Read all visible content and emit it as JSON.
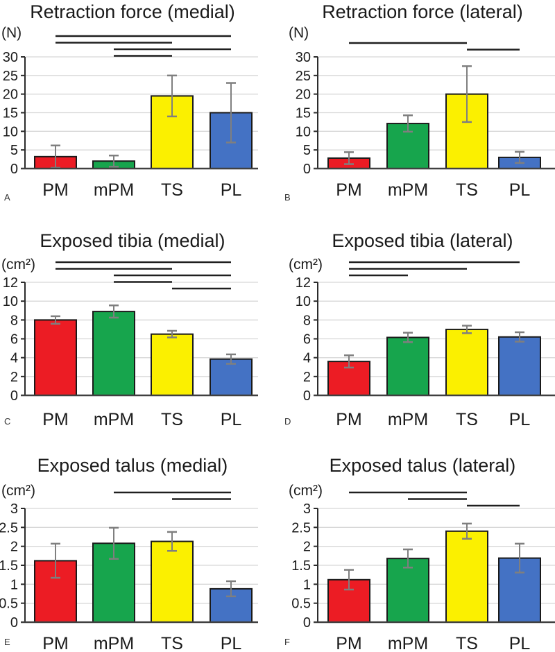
{
  "figure": {
    "bar_colors": [
      "#EC1C24",
      "#17A54D",
      "#FBF000",
      "#4472C4"
    ],
    "error_bar_color": "#7F7F7F",
    "grid_color": "#D8D8D8",
    "axis_color": "#2b2b2b",
    "baseline_color": "#404040",
    "sig_line_color": "#1f1f1f"
  },
  "chart_data": [
    {
      "panel": "A",
      "type": "bar",
      "title": "Retraction force (medial)",
      "ylabel": "(N)",
      "categories": [
        "PM",
        "mPM",
        "TS",
        "PL"
      ],
      "values": [
        3.2,
        2.0,
        19.5,
        15.0
      ],
      "errors": [
        3.0,
        1.5,
        5.5,
        8.0
      ],
      "ylim": [
        0,
        30
      ],
      "ytick_step": 5,
      "grid": true,
      "sig_pairs": [
        [
          0,
          3
        ],
        [
          0,
          2
        ],
        [
          1,
          3
        ],
        [
          1,
          2
        ]
      ]
    },
    {
      "panel": "B",
      "type": "bar",
      "title": "Retraction force (lateral)",
      "ylabel": "(N)",
      "categories": [
        "PM",
        "mPM",
        "TS",
        "PL"
      ],
      "values": [
        2.8,
        12.1,
        20.0,
        3.0
      ],
      "errors": [
        1.6,
        2.2,
        7.5,
        1.5
      ],
      "ylim": [
        0,
        30
      ],
      "ytick_step": 5,
      "grid": true,
      "sig_pairs": [
        [
          0,
          2
        ],
        [
          2,
          3
        ]
      ]
    },
    {
      "panel": "C",
      "type": "bar",
      "title": "Exposed tibia (medial)",
      "ylabel": "(cm²)",
      "categories": [
        "PM",
        "mPM",
        "TS",
        "PL"
      ],
      "values": [
        8.0,
        8.9,
        6.5,
        3.85
      ],
      "errors": [
        0.4,
        0.65,
        0.35,
        0.5
      ],
      "ylim": [
        0,
        12
      ],
      "ytick_step": 2,
      "grid": true,
      "sig_pairs": [
        [
          0,
          3
        ],
        [
          0,
          2
        ],
        [
          1,
          3
        ],
        [
          1,
          2
        ],
        [
          2,
          3
        ]
      ]
    },
    {
      "panel": "D",
      "type": "bar",
      "title": "Exposed tibia (lateral)",
      "ylabel": "(cm²)",
      "categories": [
        "PM",
        "mPM",
        "TS",
        "PL"
      ],
      "values": [
        3.6,
        6.15,
        7.0,
        6.2
      ],
      "errors": [
        0.65,
        0.5,
        0.4,
        0.5
      ],
      "ylim": [
        0,
        12
      ],
      "ytick_step": 2,
      "grid": true,
      "sig_pairs": [
        [
          0,
          3
        ],
        [
          0,
          2
        ],
        [
          0,
          1
        ]
      ]
    },
    {
      "panel": "E",
      "type": "bar",
      "title": "Exposed talus (medial)",
      "ylabel": "(cm²)",
      "categories": [
        "PM",
        "mPM",
        "TS",
        "PL"
      ],
      "values": [
        1.62,
        2.08,
        2.13,
        0.88
      ],
      "errors": [
        0.45,
        0.41,
        0.25,
        0.2
      ],
      "ylim": [
        0,
        3
      ],
      "ytick_step": 0.5,
      "grid": true,
      "sig_pairs": [
        [
          1,
          3
        ],
        [
          2,
          3
        ]
      ]
    },
    {
      "panel": "F",
      "type": "bar",
      "title": "Exposed talus (lateral)",
      "ylabel": "(cm²)",
      "categories": [
        "PM",
        "mPM",
        "TS",
        "PL"
      ],
      "values": [
        1.12,
        1.68,
        2.4,
        1.69
      ],
      "errors": [
        0.26,
        0.24,
        0.2,
        0.38
      ],
      "ylim": [
        0,
        3
      ],
      "ytick_step": 0.5,
      "grid": true,
      "sig_pairs": [
        [
          0,
          2
        ],
        [
          1,
          2
        ],
        [
          2,
          3
        ]
      ]
    }
  ]
}
